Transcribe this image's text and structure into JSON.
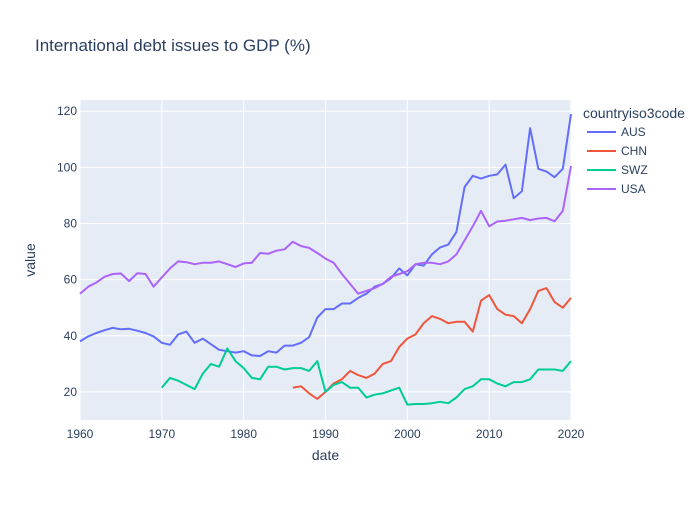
{
  "chart_data": {
    "type": "line",
    "title": "International debt issues to GDP (%)",
    "xlabel": "date",
    "ylabel": "value",
    "xlim": [
      1960,
      2020
    ],
    "ylim": [
      10,
      124
    ],
    "xticks": [
      1960,
      1970,
      1980,
      1990,
      2000,
      2010,
      2020
    ],
    "yticks": [
      20,
      40,
      60,
      80,
      100,
      120
    ],
    "grid": true,
    "legend": {
      "title": "countryiso3code",
      "placement": "right"
    },
    "colors": {
      "plot_background": "#e5ecf6",
      "grid": "#ffffff",
      "text": "#2a3f5f"
    },
    "series": [
      {
        "name": "AUS",
        "color": "#636efa",
        "x": [
          1960,
          1961,
          1962,
          1963,
          1964,
          1965,
          1966,
          1967,
          1968,
          1969,
          1970,
          1971,
          1972,
          1973,
          1974,
          1975,
          1976,
          1977,
          1978,
          1979,
          1980,
          1981,
          1982,
          1983,
          1984,
          1985,
          1986,
          1987,
          1988,
          1989,
          1990,
          1991,
          1992,
          1993,
          1994,
          1995,
          1996,
          1997,
          1998,
          1999,
          2000,
          2001,
          2002,
          2003,
          2004,
          2005,
          2006,
          2007,
          2008,
          2009,
          2010,
          2011,
          2012,
          2013,
          2014,
          2015,
          2016,
          2017,
          2018,
          2019,
          2020
        ],
        "y": [
          38,
          39.8,
          41,
          42,
          42.8,
          42.3,
          42.5,
          41.8,
          41,
          39.8,
          37.5,
          36.8,
          40.5,
          41.5,
          37.5,
          39,
          37,
          35,
          34.5,
          34,
          34.5,
          33,
          32.8,
          34.5,
          34,
          36.5,
          36.5,
          37.5,
          39.5,
          46.5,
          49.5,
          49.5,
          51.5,
          51.5,
          53.5,
          55,
          57.5,
          58.5,
          60.5,
          64,
          61.5,
          65.5,
          65,
          69,
          71.5,
          72.5,
          77,
          93,
          97,
          96,
          97,
          97.5,
          101,
          89,
          91.5,
          114,
          99.5,
          98.5,
          96.5,
          99.5,
          119
        ]
      },
      {
        "name": "CHN",
        "color": "#ef553b",
        "x": [
          1986,
          1987,
          1988,
          1989,
          1990,
          1991,
          1992,
          1993,
          1994,
          1995,
          1996,
          1997,
          1998,
          1999,
          2000,
          2001,
          2002,
          2003,
          2004,
          2005,
          2006,
          2007,
          2008,
          2009,
          2010,
          2011,
          2012,
          2013,
          2014,
          2015,
          2016,
          2017,
          2018,
          2019,
          2020
        ],
        "y": [
          21.5,
          22,
          19.5,
          17.5,
          20,
          23,
          24.5,
          27.5,
          26,
          25,
          26.5,
          30,
          31,
          36,
          39,
          40.5,
          44.5,
          47,
          46,
          44.5,
          45,
          45,
          41.5,
          52.5,
          54.5,
          49.5,
          47.5,
          47,
          44.5,
          49.5,
          56,
          57,
          52,
          50,
          53.5
        ]
      },
      {
        "name": "SWZ",
        "color": "#00cc96",
        "x": [
          1970,
          1971,
          1972,
          1973,
          1974,
          1975,
          1976,
          1977,
          1978,
          1979,
          1980,
          1981,
          1982,
          1983,
          1984,
          1985,
          1986,
          1987,
          1988,
          1989,
          1990,
          1991,
          1992,
          1993,
          1994,
          1995,
          1996,
          1997,
          1998,
          1999,
          2000,
          2001,
          2002,
          2003,
          2004,
          2005,
          2006,
          2007,
          2008,
          2009,
          2010,
          2011,
          2012,
          2013,
          2014,
          2015,
          2016,
          2017,
          2018,
          2019,
          2020
        ],
        "y": [
          21.5,
          25,
          24,
          22.5,
          21,
          26.5,
          30,
          29,
          35.5,
          31,
          28.5,
          25,
          24.5,
          29,
          29,
          28,
          28.5,
          28.5,
          27.5,
          31,
          20,
          22.5,
          23.5,
          21.5,
          21.5,
          18,
          19,
          19.5,
          20.5,
          21.5,
          15.5,
          15.7,
          15.7,
          16,
          16.5,
          16,
          18,
          21,
          22,
          24.5,
          24.5,
          23,
          22,
          23.5,
          23.5,
          24.5,
          28,
          28,
          28,
          27.5,
          31
        ]
      },
      {
        "name": "USA",
        "color": "#ab63fa",
        "x": [
          1960,
          1961,
          1962,
          1963,
          1964,
          1965,
          1966,
          1967,
          1968,
          1969,
          1970,
          1971,
          1972,
          1973,
          1974,
          1975,
          1976,
          1977,
          1978,
          1979,
          1980,
          1981,
          1982,
          1983,
          1984,
          1985,
          1986,
          1987,
          1988,
          1989,
          1990,
          1991,
          1992,
          1993,
          1994,
          1995,
          1996,
          1997,
          1998,
          1999,
          2000,
          2001,
          2002,
          2003,
          2004,
          2005,
          2006,
          2007,
          2008,
          2009,
          2010,
          2011,
          2012,
          2013,
          2014,
          2015,
          2016,
          2017,
          2018,
          2019,
          2020
        ],
        "y": [
          55,
          57.5,
          59,
          61,
          62,
          62.2,
          59.5,
          62.3,
          62,
          57.5,
          60.8,
          64,
          66.5,
          66.2,
          65.5,
          66,
          66,
          66.5,
          65.5,
          64.5,
          65.8,
          66,
          69.5,
          69.2,
          70.3,
          70.8,
          73.5,
          72,
          71.3,
          69.5,
          67.5,
          66,
          62,
          58.5,
          55,
          56,
          57,
          58.5,
          61,
          62,
          63,
          65.5,
          66,
          66,
          65.5,
          66.5,
          69,
          74,
          79,
          84.5,
          79,
          80.7,
          81,
          81.5,
          82,
          81.2,
          81.8,
          82,
          80.8,
          84.5,
          100.5
        ]
      }
    ]
  }
}
